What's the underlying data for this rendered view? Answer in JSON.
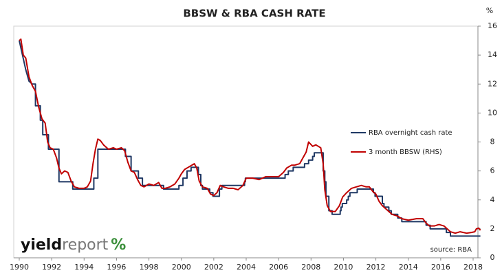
{
  "chart_data": {
    "type": "line",
    "title": "BBSW & RBA CASH RATE",
    "y_unit": "%",
    "source": "source: RBA",
    "logo": [
      "yield",
      "report",
      "%"
    ],
    "xlim": [
      1990,
      2018.5
    ],
    "xticks": [
      1990,
      1992,
      1994,
      1996,
      1998,
      2000,
      2002,
      2004,
      2006,
      2008,
      2010,
      2012,
      2014,
      2016,
      2018
    ],
    "ylim": [
      0,
      16
    ],
    "yticks": [
      0,
      2,
      4,
      6,
      8,
      10,
      12,
      14,
      16
    ],
    "grid": false,
    "series": [
      {
        "name": "RBA overnight cash rate",
        "color": "#1f3864",
        "x": [
          1990.0,
          1990.2,
          1990.4,
          1990.6,
          1990.8,
          1991.0,
          1991.0,
          1991.3,
          1991.3,
          1991.45,
          1991.45,
          1991.8,
          1991.8,
          1992.45,
          1992.45,
          1993.3,
          1993.3,
          1994.6,
          1994.6,
          1994.85,
          1994.85,
          1996.55,
          1996.55,
          1996.9,
          1996.9,
          1997.35,
          1997.35,
          1997.6,
          1997.6,
          1998.9,
          1998.9,
          1999.85,
          1999.85,
          2000.1,
          2000.1,
          2000.35,
          2000.35,
          2000.6,
          2000.6,
          2001.05,
          2001.05,
          2001.2,
          2001.2,
          2001.3,
          2001.3,
          2001.75,
          2001.75,
          2001.95,
          2001.95,
          2002.35,
          2002.35,
          2002.5,
          2002.5,
          2003.9,
          2003.9,
          2003.95,
          2003.95,
          2006.4,
          2006.4,
          2006.6,
          2006.6,
          2006.9,
          2006.9,
          2007.6,
          2007.6,
          2007.85,
          2007.85,
          2008.1,
          2008.1,
          2008.2,
          2008.2,
          2008.75,
          2008.75,
          2008.85,
          2008.85,
          2008.92,
          2008.92,
          2009.1,
          2009.1,
          2009.3,
          2009.3,
          2009.8,
          2009.8,
          2009.85,
          2009.85,
          2009.93,
          2009.93,
          2010.2,
          2010.2,
          2010.3,
          2010.3,
          2010.4,
          2010.4,
          2010.85,
          2010.85,
          2011.85,
          2011.85,
          2011.95,
          2011.95,
          2012.4,
          2012.4,
          2012.5,
          2012.5,
          2012.8,
          2012.8,
          2012.95,
          2012.95,
          2013.35,
          2013.35,
          2013.6,
          2013.6,
          2015.1,
          2015.1,
          2015.35,
          2015.35,
          2016.35,
          2016.35,
          2016.6,
          2016.6,
          2018.45
        ],
        "values": [
          15,
          14,
          13,
          12.2,
          12,
          12,
          10.5,
          10.5,
          9.5,
          9.5,
          8.5,
          8.5,
          7.5,
          7.5,
          5.25,
          5.25,
          4.75,
          4.75,
          5.5,
          5.5,
          7.5,
          7.5,
          7.0,
          7.0,
          6.0,
          6.0,
          5.5,
          5.5,
          5.0,
          5.0,
          4.75,
          4.75,
          5.0,
          5.0,
          5.5,
          5.5,
          6.0,
          6.0,
          6.25,
          6.25,
          5.75,
          5.75,
          5.0,
          5.0,
          4.75,
          4.75,
          4.5,
          4.5,
          4.25,
          4.25,
          4.75,
          4.75,
          5.0,
          5.0,
          5.25,
          5.25,
          5.5,
          5.5,
          5.75,
          5.75,
          6.0,
          6.0,
          6.25,
          6.25,
          6.5,
          6.5,
          6.75,
          6.75,
          7.0,
          7.0,
          7.25,
          7.25,
          6.0,
          6.0,
          5.25,
          5.25,
          4.25,
          4.25,
          3.25,
          3.25,
          3.0,
          3.0,
          3.25,
          3.25,
          3.5,
          3.5,
          3.75,
          3.75,
          4.0,
          4.0,
          4.25,
          4.25,
          4.5,
          4.5,
          4.75,
          4.75,
          4.5,
          4.5,
          4.25,
          4.25,
          3.75,
          3.75,
          3.5,
          3.5,
          3.25,
          3.25,
          3.0,
          3.0,
          2.75,
          2.75,
          2.5,
          2.5,
          2.25,
          2.25,
          2.0,
          2.0,
          1.75,
          1.75,
          1.5,
          1.5
        ]
      },
      {
        "name": "3 month BBSW (RHS)",
        "color": "#c00000",
        "x": [
          1990.0,
          1990.1,
          1990.25,
          1990.4,
          1990.6,
          1990.8,
          1991.0,
          1991.2,
          1991.4,
          1991.6,
          1991.75,
          1991.9,
          1992.1,
          1992.3,
          1992.45,
          1992.6,
          1992.8,
          1993.0,
          1993.2,
          1993.4,
          1993.7,
          1994.0,
          1994.2,
          1994.4,
          1994.55,
          1994.7,
          1994.85,
          1995.0,
          1995.2,
          1995.5,
          1995.8,
          1996.0,
          1996.3,
          1996.5,
          1996.7,
          1996.9,
          1997.1,
          1997.3,
          1997.5,
          1997.7,
          1998.0,
          1998.3,
          1998.6,
          1998.8,
          1999.0,
          1999.3,
          1999.6,
          1999.85,
          2000.0,
          2000.2,
          2000.5,
          2000.8,
          2000.95,
          2001.1,
          2001.3,
          2001.6,
          2001.8,
          2002.0,
          2002.2,
          2002.4,
          2002.6,
          2002.9,
          2003.2,
          2003.5,
          2003.8,
          2004.0,
          2004.4,
          2004.8,
          2005.2,
          2005.6,
          2006.0,
          2006.3,
          2006.5,
          2006.8,
          2007.0,
          2007.3,
          2007.5,
          2007.7,
          2007.85,
          2008.1,
          2008.3,
          2008.6,
          2008.75,
          2008.85,
          2009.0,
          2009.2,
          2009.5,
          2009.75,
          2009.95,
          2010.2,
          2010.5,
          2010.8,
          2011.1,
          2011.4,
          2011.6,
          2011.8,
          2012.0,
          2012.2,
          2012.4,
          2012.6,
          2012.8,
          2013.0,
          2013.3,
          2013.6,
          2014.0,
          2014.5,
          2014.9,
          2015.1,
          2015.3,
          2015.6,
          2015.9,
          2016.2,
          2016.4,
          2016.6,
          2016.9,
          2017.2,
          2017.6,
          2017.9,
          2018.1,
          2018.2,
          2018.35,
          2018.45
        ],
        "values": [
          15,
          15.1,
          14,
          13.8,
          12.5,
          11.9,
          11.5,
          10.4,
          9.6,
          9.3,
          8,
          7.6,
          7.5,
          6.9,
          6.2,
          5.8,
          6.0,
          5.9,
          5.3,
          4.9,
          4.8,
          4.8,
          4.9,
          5.3,
          6.5,
          7.5,
          8.2,
          8.1,
          7.8,
          7.5,
          7.6,
          7.5,
          7.6,
          7.4,
          6.6,
          6.0,
          5.9,
          5.4,
          5.0,
          4.9,
          5.1,
          5.0,
          5.2,
          4.8,
          4.8,
          4.9,
          5.1,
          5.5,
          5.8,
          6.1,
          6.3,
          6.5,
          6.2,
          5.3,
          4.9,
          4.8,
          4.4,
          4.3,
          4.5,
          5.0,
          4.9,
          4.8,
          4.8,
          4.7,
          5.0,
          5.5,
          5.5,
          5.4,
          5.6,
          5.6,
          5.6,
          5.9,
          6.2,
          6.4,
          6.4,
          6.5,
          6.9,
          7.3,
          8.0,
          7.7,
          7.8,
          7.6,
          6.5,
          4.7,
          3.6,
          3.2,
          3.2,
          3.6,
          4.2,
          4.5,
          4.8,
          4.9,
          5.0,
          4.9,
          4.9,
          4.6,
          4.4,
          3.9,
          3.6,
          3.4,
          3.2,
          3.0,
          2.9,
          2.7,
          2.6,
          2.7,
          2.7,
          2.4,
          2.2,
          2.2,
          2.3,
          2.2,
          2.0,
          1.8,
          1.7,
          1.8,
          1.7,
          1.75,
          1.8,
          2.0,
          2.05,
          1.9
        ]
      }
    ]
  }
}
